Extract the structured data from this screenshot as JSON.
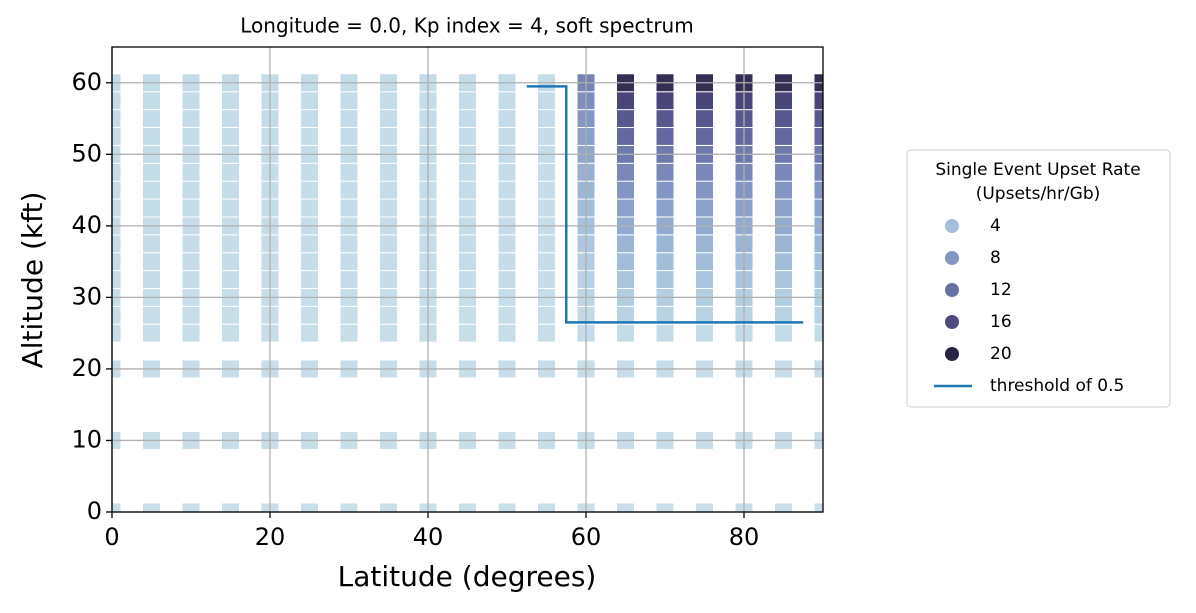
{
  "chart_data": {
    "type": "scatter",
    "title": "Longitude = 0.0, Kp index = 4, soft spectrum",
    "xlabel": "Latitude (degrees)",
    "ylabel": "Altitude (kft)",
    "xlim": [
      0,
      90
    ],
    "ylim": [
      0,
      65
    ],
    "xticks": [
      0,
      20,
      40,
      60,
      80
    ],
    "yticks": [
      0,
      10,
      20,
      30,
      40,
      50,
      60
    ],
    "grid": true,
    "marker": "square",
    "x": [
      0,
      5,
      10,
      15,
      20,
      25,
      30,
      35,
      40,
      45,
      50,
      55,
      60,
      65,
      70,
      75,
      80,
      85,
      90
    ],
    "y": [
      0,
      10,
      20,
      25,
      27.5,
      30,
      32.5,
      35,
      37.5,
      40,
      42.5,
      45,
      47.5,
      50,
      52.5,
      55,
      57.5,
      60
    ],
    "values": [
      [
        0.01,
        0.01,
        0.01,
        0.01,
        0.01,
        0.01,
        0.01,
        0.01,
        0.01,
        0.01,
        0.01,
        0.01,
        0.02,
        0.03,
        0.03,
        0.03,
        0.03,
        0.03,
        0.03
      ],
      [
        0.04,
        0.04,
        0.04,
        0.04,
        0.04,
        0.04,
        0.04,
        0.04,
        0.04,
        0.04,
        0.04,
        0.04,
        0.06,
        0.08,
        0.08,
        0.08,
        0.08,
        0.08,
        0.08
      ],
      [
        0.1,
        0.1,
        0.1,
        0.1,
        0.1,
        0.1,
        0.1,
        0.1,
        0.1,
        0.1,
        0.1,
        0.1,
        0.15,
        0.2,
        0.2,
        0.2,
        0.2,
        0.2,
        0.2
      ],
      [
        0.14,
        0.14,
        0.14,
        0.14,
        0.14,
        0.14,
        0.14,
        0.14,
        0.14,
        0.14,
        0.14,
        0.14,
        0.4,
        0.45,
        0.45,
        0.45,
        0.45,
        0.45,
        0.45
      ],
      [
        0.16,
        0.16,
        0.16,
        0.16,
        0.16,
        0.16,
        0.16,
        0.16,
        0.16,
        0.16,
        0.16,
        0.16,
        0.7,
        1.5,
        1.5,
        1.5,
        1.5,
        1.5,
        1.5
      ],
      [
        0.18,
        0.18,
        0.18,
        0.18,
        0.18,
        0.18,
        0.18,
        0.18,
        0.18,
        0.18,
        0.18,
        0.18,
        1.2,
        2.3,
        2.3,
        2.3,
        2.3,
        2.3,
        2.3
      ],
      [
        0.2,
        0.2,
        0.2,
        0.2,
        0.2,
        0.2,
        0.2,
        0.2,
        0.2,
        0.2,
        0.2,
        0.2,
        1.7,
        3.2,
        3.2,
        3.2,
        3.2,
        3.2,
        3.2
      ],
      [
        0.22,
        0.22,
        0.22,
        0.22,
        0.22,
        0.22,
        0.22,
        0.22,
        0.22,
        0.22,
        0.22,
        0.22,
        2.3,
        4.1,
        4.1,
        4.1,
        4.1,
        4.1,
        4.1
      ],
      [
        0.24,
        0.24,
        0.24,
        0.24,
        0.24,
        0.24,
        0.24,
        0.24,
        0.24,
        0.24,
        0.24,
        0.24,
        3,
        5,
        5,
        5,
        5,
        5,
        5
      ],
      [
        0.26,
        0.26,
        0.26,
        0.26,
        0.26,
        0.26,
        0.26,
        0.26,
        0.26,
        0.26,
        0.26,
        0.26,
        3.6,
        6,
        6,
        6,
        6,
        6,
        6
      ],
      [
        0.28,
        0.28,
        0.28,
        0.28,
        0.28,
        0.28,
        0.28,
        0.28,
        0.28,
        0.28,
        0.28,
        0.28,
        4.2,
        7,
        7,
        7,
        7,
        7,
        7
      ],
      [
        0.3,
        0.3,
        0.3,
        0.3,
        0.3,
        0.3,
        0.3,
        0.3,
        0.3,
        0.3,
        0.3,
        0.3,
        4.9,
        8.2,
        8.2,
        8.2,
        8.2,
        8.2,
        8.2
      ],
      [
        0.32,
        0.32,
        0.32,
        0.32,
        0.32,
        0.32,
        0.32,
        0.32,
        0.32,
        0.32,
        0.32,
        0.32,
        5.6,
        9.5,
        9.5,
        9.5,
        9.5,
        9.5,
        9.5
      ],
      [
        0.34,
        0.34,
        0.34,
        0.34,
        0.34,
        0.34,
        0.34,
        0.34,
        0.34,
        0.34,
        0.34,
        0.34,
        6.4,
        11,
        11,
        11,
        11,
        11,
        11
      ],
      [
        0.36,
        0.36,
        0.36,
        0.36,
        0.36,
        0.36,
        0.36,
        0.36,
        0.36,
        0.36,
        0.36,
        0.36,
        7.2,
        12.7,
        12.7,
        12.7,
        12.7,
        12.7,
        12.7
      ],
      [
        0.38,
        0.38,
        0.38,
        0.38,
        0.38,
        0.38,
        0.38,
        0.38,
        0.38,
        0.38,
        0.38,
        0.38,
        8,
        14.5,
        14.5,
        14.5,
        14.5,
        14.5,
        14.5
      ],
      [
        0.41,
        0.41,
        0.41,
        0.41,
        0.41,
        0.41,
        0.41,
        0.41,
        0.41,
        0.41,
        0.41,
        0.41,
        9,
        16.5,
        16.5,
        16.5,
        16.5,
        16.5,
        16.5
      ],
      [
        0.44,
        0.44,
        0.44,
        0.44,
        0.44,
        0.44,
        0.44,
        0.44,
        0.44,
        0.44,
        0.44,
        0.44,
        10,
        19,
        19,
        19,
        19,
        19,
        19
      ]
    ],
    "color_stops": [
      {
        "value": 0,
        "color": "#c8dfea"
      },
      {
        "value": 4,
        "color": "#a3bfdb"
      },
      {
        "value": 8,
        "color": "#8497c4"
      },
      {
        "value": 12,
        "color": "#6770a6"
      },
      {
        "value": 16,
        "color": "#4e4a80"
      },
      {
        "value": 20,
        "color": "#2c2444"
      }
    ],
    "legend": {
      "title": [
        "Single Event Upset Rate",
        "(Upsets/hr/Gb)"
      ],
      "levels": [
        4,
        8,
        12,
        16,
        20
      ],
      "position": "outside right"
    },
    "lines": [
      {
        "name": "threshold of 0.5",
        "color": "#1f77b4",
        "x": [
          52.5,
          57.5,
          57.5,
          87.5
        ],
        "y": [
          59.5,
          59.5,
          26.5,
          26.5
        ]
      }
    ]
  }
}
